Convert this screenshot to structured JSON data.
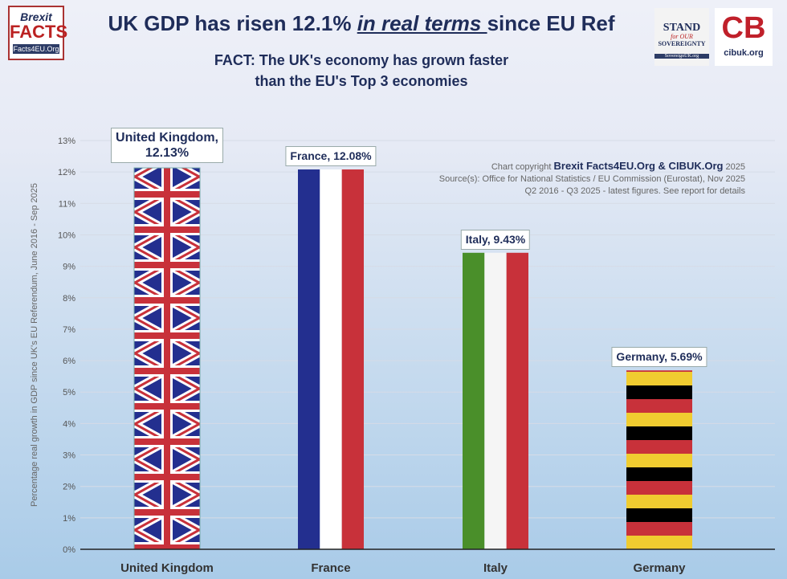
{
  "logos": {
    "left": {
      "line1": "Brexit",
      "line2": "FACTS",
      "url": "Facts4EU.Org"
    },
    "right1": {
      "line1": "STAND",
      "line2": "for OUR",
      "line3": "SOVEREIGNTY",
      "url": "SovereignUK.org"
    },
    "right2": {
      "mark": "CB",
      "url": "cibuk.org"
    }
  },
  "credits": {
    "prefix": "Chart copyright",
    "org": "Brexit Facts4EU.Org & CIBUK.Org",
    "year": "2025",
    "source": "Source(s): Office for National Statistics  / EU Commission (Eurostat), Nov 2025",
    "period": "Q2 2016 - Q3 2025 - latest figures. See report for details"
  },
  "chart_data": {
    "type": "bar",
    "title_pre": "UK GDP has risen 12.1% ",
    "title_emph": "in real terms ",
    "title_post": "since EU Ref",
    "subtitle_line1": "FACT: The UK's economy has grown faster",
    "subtitle_line2": "than the EU's Top 3 economies",
    "ylabel": "Percentage real growth in GDP since UK's EU Referendum, June 2016 - Sep 2025",
    "xlabel": "",
    "ylim": [
      0,
      13
    ],
    "yticks": [
      "0%",
      "1%",
      "2%",
      "3%",
      "4%",
      "5%",
      "6%",
      "7%",
      "8%",
      "9%",
      "10%",
      "11%",
      "12%",
      "13%"
    ],
    "grid": true,
    "categories": [
      "United Kingdom",
      "France",
      "Italy",
      "Germany"
    ],
    "values": [
      12.13,
      12.08,
      9.43,
      5.69
    ],
    "data_labels": [
      "United Kingdom,\n12.13%",
      "France, 12.08%",
      "Italy, 9.43%",
      "Germany, 5.69%"
    ],
    "fills": [
      "union-jack",
      "french-tricolour",
      "italian-tricolour",
      "german-stripes"
    ],
    "colors": {
      "navy": "#1f2d5a",
      "red": "#c8313a",
      "blue": "#232f8f",
      "green": "#4a8f2a",
      "black": "#000000",
      "gold": "#f0cc30"
    }
  }
}
